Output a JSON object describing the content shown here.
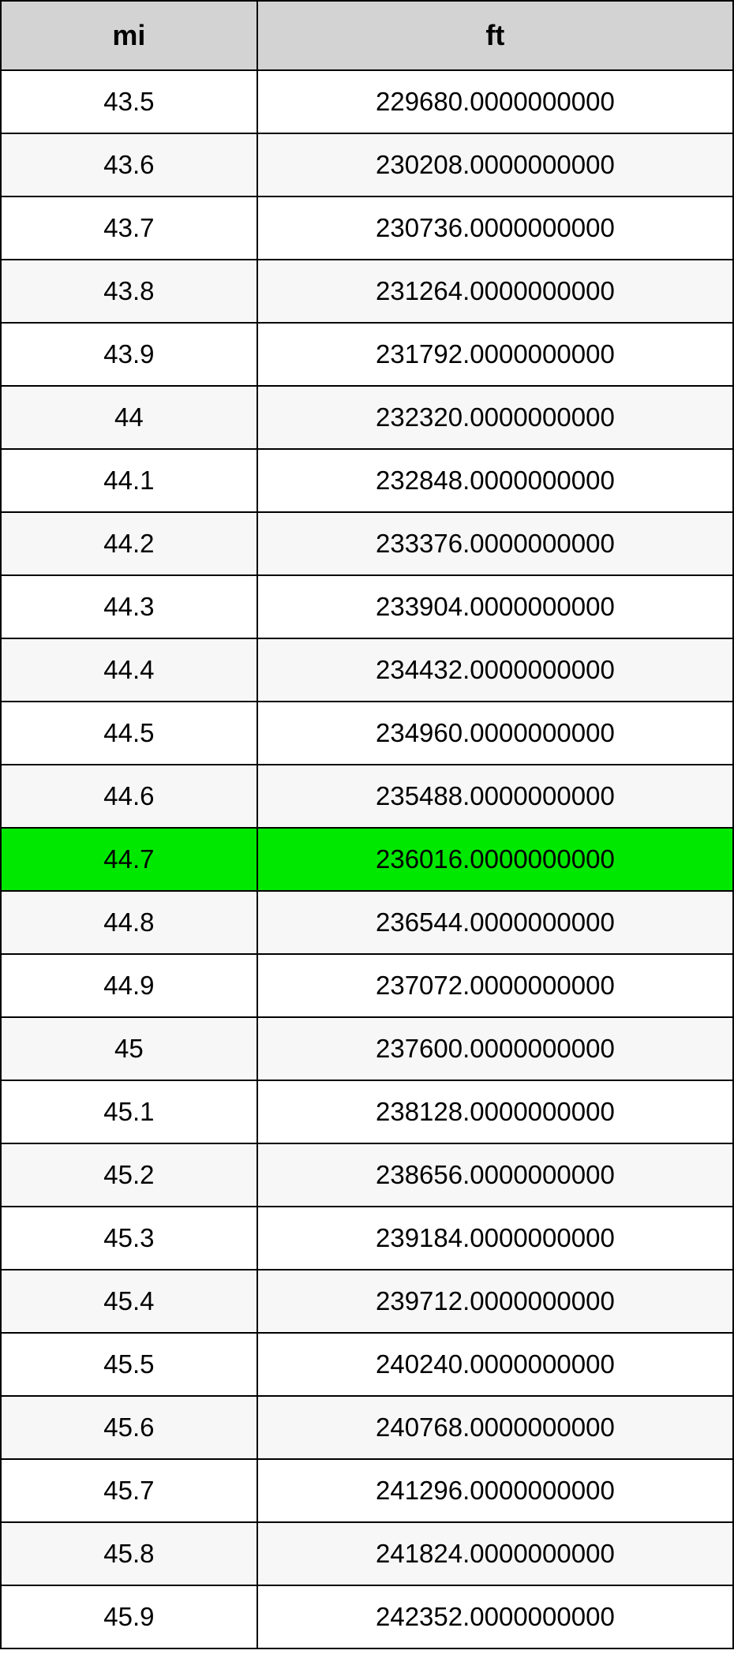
{
  "table": {
    "type": "table",
    "columns": [
      "mi",
      "ft"
    ],
    "column_widths": [
      "35%",
      "65%"
    ],
    "header_background": "#d3d3d3",
    "border_color": "#000000",
    "header_fontsize": 36,
    "cell_fontsize": 33,
    "odd_row_background": "#ffffff",
    "even_row_background": "#f7f7f7",
    "highlight_background": "#00e800",
    "highlight_row_index": 12,
    "rows": [
      {
        "mi": "43.5",
        "ft": "229680.0000000000"
      },
      {
        "mi": "43.6",
        "ft": "230208.0000000000"
      },
      {
        "mi": "43.7",
        "ft": "230736.0000000000"
      },
      {
        "mi": "43.8",
        "ft": "231264.0000000000"
      },
      {
        "mi": "43.9",
        "ft": "231792.0000000000"
      },
      {
        "mi": "44",
        "ft": "232320.0000000000"
      },
      {
        "mi": "44.1",
        "ft": "232848.0000000000"
      },
      {
        "mi": "44.2",
        "ft": "233376.0000000000"
      },
      {
        "mi": "44.3",
        "ft": "233904.0000000000"
      },
      {
        "mi": "44.4",
        "ft": "234432.0000000000"
      },
      {
        "mi": "44.5",
        "ft": "234960.0000000000"
      },
      {
        "mi": "44.6",
        "ft": "235488.0000000000"
      },
      {
        "mi": "44.7",
        "ft": "236016.0000000000"
      },
      {
        "mi": "44.8",
        "ft": "236544.0000000000"
      },
      {
        "mi": "44.9",
        "ft": "237072.0000000000"
      },
      {
        "mi": "45",
        "ft": "237600.0000000000"
      },
      {
        "mi": "45.1",
        "ft": "238128.0000000000"
      },
      {
        "mi": "45.2",
        "ft": "238656.0000000000"
      },
      {
        "mi": "45.3",
        "ft": "239184.0000000000"
      },
      {
        "mi": "45.4",
        "ft": "239712.0000000000"
      },
      {
        "mi": "45.5",
        "ft": "240240.0000000000"
      },
      {
        "mi": "45.6",
        "ft": "240768.0000000000"
      },
      {
        "mi": "45.7",
        "ft": "241296.0000000000"
      },
      {
        "mi": "45.8",
        "ft": "241824.0000000000"
      },
      {
        "mi": "45.9",
        "ft": "242352.0000000000"
      }
    ]
  }
}
